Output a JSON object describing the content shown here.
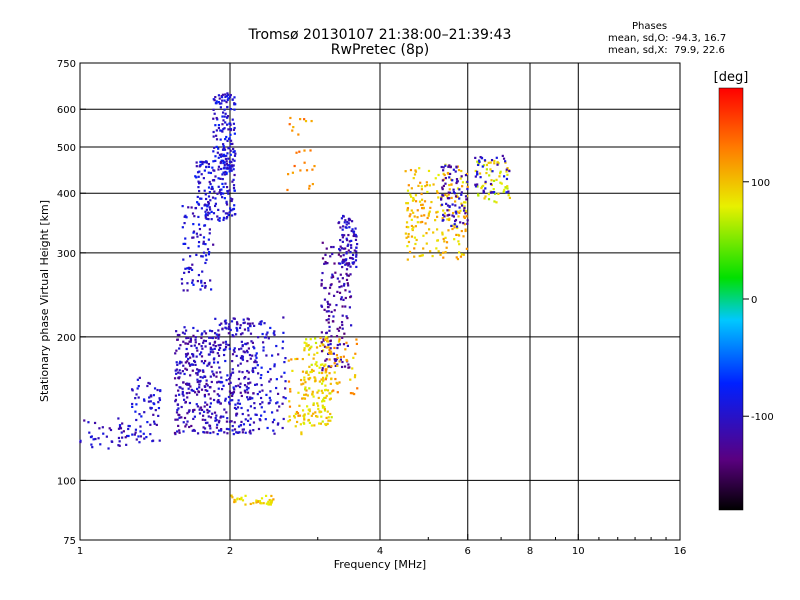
{
  "header": {
    "title_line1": "Tromsø 20130107 21:38:00–21:39:43",
    "title_line2": "RwPretec (8p)"
  },
  "phase_info": {
    "heading": "Phases",
    "line_o": "mean, sd,O: -94.3, 16.7",
    "line_x": "mean, sd,X:  79.9, 22.6"
  },
  "colorbar": {
    "label": "[deg]",
    "ticks": [
      "100",
      "0",
      "-100"
    ],
    "tick_values": [
      100,
      0,
      -100
    ],
    "range": [
      -180,
      180
    ]
  },
  "chart_data": {
    "type": "scatter",
    "xlabel": "Frequency [MHz]",
    "ylabel": "Stationary phase Virtual Height [km]",
    "x_scale": "log",
    "y_scale": "log",
    "xlim": [
      1,
      16
    ],
    "ylim": [
      75,
      750
    ],
    "x_ticks": [
      1,
      2,
      4,
      6,
      8,
      10,
      16
    ],
    "x_tick_labels": [
      "1",
      "2",
      "4",
      "6",
      "8",
      "10",
      "16"
    ],
    "y_ticks": [
      75,
      100,
      200,
      300,
      400,
      500,
      600,
      750
    ],
    "y_tick_labels": [
      "75",
      "100",
      "200",
      "300",
      "400",
      "500",
      "600",
      "750"
    ],
    "x_gridlines": [
      2,
      4,
      6,
      8,
      10
    ],
    "y_gridlines": [
      100,
      200,
      300,
      400,
      500,
      600
    ],
    "grid": true,
    "color_scale": "phase in degrees (rainbow, black=-180 to red=180)",
    "clusters": [
      {
        "x_range": [
          1.0,
          1.25
        ],
        "y_range": [
          115,
          135
        ],
        "phase": -105,
        "n": 40
      },
      {
        "x_range": [
          1.25,
          1.45
        ],
        "y_range": [
          120,
          165
        ],
        "phase": -100,
        "n": 70
      },
      {
        "x_range": [
          1.55,
          1.85
        ],
        "y_range": [
          125,
          210
        ],
        "phase": -110,
        "n": 260
      },
      {
        "x_range": [
          1.85,
          2.25
        ],
        "y_range": [
          125,
          220
        ],
        "phase": -105,
        "n": 280
      },
      {
        "x_range": [
          1.6,
          1.85
        ],
        "y_range": [
          250,
          380
        ],
        "phase": -100,
        "n": 90
      },
      {
        "x_range": [
          1.7,
          2.05
        ],
        "y_range": [
          350,
          470
        ],
        "phase": -95,
        "n": 160
      },
      {
        "x_range": [
          1.85,
          2.05
        ],
        "y_range": [
          450,
          650
        ],
        "phase": -95,
        "n": 140
      },
      {
        "x_range": [
          2.25,
          2.6
        ],
        "y_range": [
          125,
          220
        ],
        "phase": -100,
        "n": 90
      },
      {
        "x_range": [
          2.6,
          2.85
        ],
        "y_range": [
          125,
          180
        ],
        "phase": 105,
        "n": 40
      },
      {
        "x_range": [
          2.8,
          3.2
        ],
        "y_range": [
          130,
          200
        ],
        "phase": 90,
        "n": 150
      },
      {
        "x_range": [
          3.05,
          3.5
        ],
        "y_range": [
          170,
          320
        ],
        "phase": -120,
        "n": 150
      },
      {
        "x_range": [
          3.3,
          3.6
        ],
        "y_range": [
          280,
          360
        ],
        "phase": -105,
        "n": 80
      },
      {
        "x_range": [
          3.1,
          3.6
        ],
        "y_range": [
          150,
          200
        ],
        "phase": 110,
        "n": 50
      },
      {
        "x_range": [
          2.6,
          3.0
        ],
        "y_range": [
          400,
          580
        ],
        "phase": 120,
        "n": 25
      },
      {
        "x_range": [
          4.5,
          6.0
        ],
        "y_range": [
          290,
          460
        ],
        "phase": 100,
        "n": 200
      },
      {
        "x_range": [
          5.3,
          6.0
        ],
        "y_range": [
          340,
          460
        ],
        "phase": -110,
        "n": 80
      },
      {
        "x_range": [
          6.2,
          7.3
        ],
        "y_range": [
          380,
          470
        ],
        "phase": 80,
        "n": 60
      },
      {
        "x_range": [
          6.2,
          7.3
        ],
        "y_range": [
          400,
          480
        ],
        "phase": -100,
        "n": 40
      },
      {
        "x_range": [
          1.95,
          2.45
        ],
        "y_range": [
          89,
          93
        ],
        "phase": 95,
        "n": 40
      }
    ]
  }
}
